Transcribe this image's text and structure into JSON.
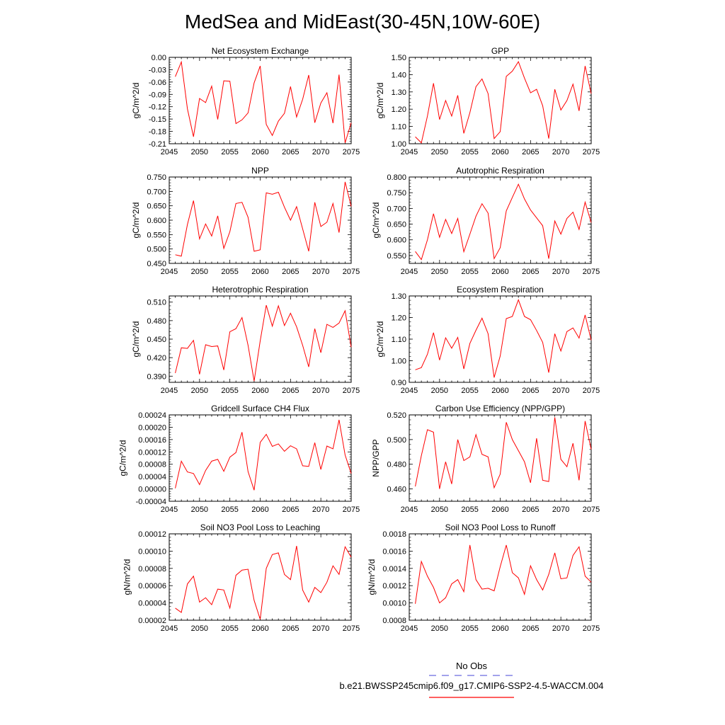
{
  "title": "MedSea and MidEast(30-45N,10W-60E)",
  "legend": {
    "entries": [
      {
        "label": "No Obs",
        "color": "#6a6adf",
        "dashed": true
      },
      {
        "label": "b.e21.BWSSP245cmip6.f09_g17.CMIP6-SSP2-4.5-WACCM.004",
        "color": "#ff0000",
        "dashed": false
      }
    ]
  },
  "chart_data": [
    {
      "type": "line",
      "title": "Net Ecosystem Exchange",
      "ylabel": "gC/m^2/d",
      "xlim": [
        2045,
        2075
      ],
      "ylim": [
        -0.21,
        0.0
      ],
      "xticks": [
        "2045",
        "2050",
        "2055",
        "2060",
        "2065",
        "2070",
        "2075"
      ],
      "yticks": [
        "0.00",
        "-0.03",
        "-0.06",
        "-0.09",
        "-0.12",
        "-0.15",
        "-0.18",
        "-0.21"
      ],
      "series": [
        {
          "color": "#ff0000",
          "x": [
            2046,
            2047,
            2048,
            2049,
            2050,
            2051,
            2052,
            2053,
            2054,
            2055,
            2056,
            2057,
            2058,
            2059,
            2060,
            2061,
            2062,
            2063,
            2064,
            2065,
            2066,
            2067,
            2068,
            2069,
            2070,
            2071,
            2072,
            2073,
            2074,
            2075
          ],
          "y": [
            -0.047,
            -0.011,
            -0.125,
            -0.193,
            -0.1,
            -0.11,
            -0.07,
            -0.151,
            -0.057,
            -0.058,
            -0.161,
            -0.152,
            -0.135,
            -0.062,
            -0.021,
            -0.163,
            -0.19,
            -0.155,
            -0.136,
            -0.071,
            -0.145,
            -0.102,
            -0.043,
            -0.159,
            -0.111,
            -0.086,
            -0.16,
            -0.042,
            -0.208,
            -0.159
          ]
        }
      ]
    },
    {
      "type": "line",
      "title": "GPP",
      "ylabel": "gC/m^2/d",
      "xlim": [
        2045,
        2075
      ],
      "ylim": [
        1.0,
        1.5
      ],
      "xticks": [
        "2045",
        "2050",
        "2055",
        "2060",
        "2065",
        "2070",
        "2075"
      ],
      "yticks": [
        "1.00",
        "1.10",
        "1.20",
        "1.30",
        "1.40",
        "1.50"
      ],
      "series": [
        {
          "color": "#ff0000",
          "x": [
            2046,
            2047,
            2048,
            2049,
            2050,
            2051,
            2052,
            2053,
            2054,
            2055,
            2056,
            2057,
            2058,
            2059,
            2060,
            2061,
            2062,
            2063,
            2064,
            2065,
            2066,
            2067,
            2068,
            2069,
            2070,
            2071,
            2072,
            2073,
            2074,
            2075
          ],
          "y": [
            1.04,
            1.005,
            1.16,
            1.35,
            1.14,
            1.25,
            1.16,
            1.28,
            1.06,
            1.18,
            1.33,
            1.375,
            1.29,
            1.03,
            1.07,
            1.39,
            1.42,
            1.475,
            1.38,
            1.295,
            1.315,
            1.22,
            1.03,
            1.315,
            1.195,
            1.25,
            1.345,
            1.19,
            1.45,
            1.29
          ]
        }
      ]
    },
    {
      "type": "line",
      "title": "NPP",
      "ylabel": "gC/m^2/d",
      "xlim": [
        2045,
        2075
      ],
      "ylim": [
        0.45,
        0.75
      ],
      "xticks": [
        "2045",
        "2050",
        "2055",
        "2060",
        "2065",
        "2070",
        "2075"
      ],
      "yticks": [
        "0.750",
        "0.700",
        "0.650",
        "0.600",
        "0.550",
        "0.500",
        "0.450"
      ],
      "series": [
        {
          "color": "#ff0000",
          "x": [
            2046,
            2047,
            2048,
            2049,
            2050,
            2051,
            2052,
            2053,
            2054,
            2055,
            2056,
            2057,
            2058,
            2059,
            2060,
            2061,
            2062,
            2063,
            2064,
            2065,
            2066,
            2067,
            2068,
            2069,
            2070,
            2071,
            2072,
            2073,
            2074,
            2075
          ],
          "y": [
            0.48,
            0.475,
            0.585,
            0.668,
            0.535,
            0.587,
            0.545,
            0.615,
            0.502,
            0.56,
            0.658,
            0.662,
            0.61,
            0.492,
            0.497,
            0.695,
            0.69,
            0.697,
            0.645,
            0.6,
            0.647,
            0.57,
            0.492,
            0.662,
            0.578,
            0.593,
            0.658,
            0.557,
            0.733,
            0.648
          ]
        }
      ]
    },
    {
      "type": "line",
      "title": "Autotrophic Respiration",
      "ylabel": "gC/m^2/d",
      "xlim": [
        2045,
        2075
      ],
      "ylim": [
        0.525,
        0.8
      ],
      "xticks": [
        "2045",
        "2050",
        "2055",
        "2060",
        "2065",
        "2070",
        "2075"
      ],
      "yticks": [
        "0.800",
        "0.750",
        "0.700",
        "0.650",
        "0.600",
        "0.550"
      ],
      "series": [
        {
          "color": "#ff0000",
          "x": [
            2046,
            2047,
            2048,
            2049,
            2050,
            2051,
            2052,
            2053,
            2054,
            2055,
            2056,
            2057,
            2058,
            2059,
            2060,
            2061,
            2062,
            2063,
            2064,
            2065,
            2066,
            2067,
            2068,
            2069,
            2070,
            2071,
            2072,
            2073,
            2074,
            2075
          ],
          "y": [
            0.563,
            0.537,
            0.6,
            0.683,
            0.608,
            0.665,
            0.62,
            0.668,
            0.562,
            0.618,
            0.675,
            0.715,
            0.685,
            0.54,
            0.575,
            0.692,
            0.735,
            0.777,
            0.73,
            0.695,
            0.67,
            0.645,
            0.54,
            0.66,
            0.618,
            0.668,
            0.688,
            0.633,
            0.72,
            0.655
          ]
        }
      ]
    },
    {
      "type": "line",
      "title": "Heterotrophic Respiration",
      "ylabel": "gC/m^2/d",
      "xlim": [
        2045,
        2075
      ],
      "ylim": [
        0.38,
        0.52
      ],
      "xticks": [
        "2045",
        "2050",
        "2055",
        "2060",
        "2065",
        "2070",
        "2075"
      ],
      "yticks": [
        "0.510",
        "0.480",
        "0.450",
        "0.420",
        "0.390"
      ],
      "series": [
        {
          "color": "#ff0000",
          "x": [
            2046,
            2047,
            2048,
            2049,
            2050,
            2051,
            2052,
            2053,
            2054,
            2055,
            2056,
            2057,
            2058,
            2059,
            2060,
            2061,
            2062,
            2063,
            2064,
            2065,
            2066,
            2067,
            2068,
            2069,
            2070,
            2071,
            2072,
            2073,
            2074,
            2075
          ],
          "y": [
            0.395,
            0.436,
            0.435,
            0.448,
            0.393,
            0.441,
            0.438,
            0.439,
            0.4,
            0.462,
            0.467,
            0.485,
            0.44,
            0.382,
            0.447,
            0.505,
            0.471,
            0.504,
            0.472,
            0.492,
            0.47,
            0.44,
            0.405,
            0.467,
            0.428,
            0.474,
            0.469,
            0.476,
            0.496,
            0.437
          ]
        }
      ]
    },
    {
      "type": "line",
      "title": "Ecosystem Respiration",
      "ylabel": "gC/m^2/d",
      "xlim": [
        2045,
        2075
      ],
      "ylim": [
        0.9,
        1.3
      ],
      "xticks": [
        "2045",
        "2050",
        "2055",
        "2060",
        "2065",
        "2070",
        "2075"
      ],
      "yticks": [
        "1.30",
        "1.20",
        "1.10",
        "1.00",
        "0.90"
      ],
      "series": [
        {
          "color": "#ff0000",
          "x": [
            2046,
            2047,
            2048,
            2049,
            2050,
            2051,
            2052,
            2053,
            2054,
            2055,
            2056,
            2057,
            2058,
            2059,
            2060,
            2061,
            2062,
            2063,
            2064,
            2065,
            2066,
            2067,
            2068,
            2069,
            2070,
            2071,
            2072,
            2073,
            2074,
            2075
          ],
          "y": [
            0.958,
            0.968,
            1.03,
            1.13,
            1.003,
            1.106,
            1.058,
            1.108,
            0.962,
            1.08,
            1.141,
            1.197,
            1.125,
            0.922,
            1.022,
            1.195,
            1.205,
            1.282,
            1.205,
            1.19,
            1.14,
            1.085,
            0.945,
            1.125,
            1.045,
            1.135,
            1.152,
            1.105,
            1.212,
            1.095
          ]
        }
      ]
    },
    {
      "type": "line",
      "title": "Gridcell Surface CH4 Flux",
      "ylabel": "gC/m^2/d",
      "xlim": [
        2045,
        2075
      ],
      "ylim": [
        -4e-05,
        0.00024
      ],
      "xticks": [
        "2045",
        "2050",
        "2055",
        "2060",
        "2065",
        "2070",
        "2075"
      ],
      "yticks": [
        "0.00024",
        "0.00020",
        "0.00016",
        "0.00012",
        "0.00008",
        "0.00004",
        "0.00000",
        "-0.00004"
      ],
      "series": [
        {
          "color": "#ff0000",
          "x": [
            2046,
            2047,
            2048,
            2049,
            2050,
            2051,
            2052,
            2053,
            2054,
            2055,
            2056,
            2057,
            2058,
            2059,
            2060,
            2061,
            2062,
            2063,
            2064,
            2065,
            2066,
            2067,
            2068,
            2069,
            2070,
            2071,
            2072,
            2073,
            2074,
            2075
          ],
          "y": [
            2e-06,
            9e-05,
            5.5e-05,
            5e-05,
            1.4e-05,
            6e-05,
            9e-05,
            9.6e-05,
            5.7e-05,
            0.000103,
            0.000118,
            0.000184,
            5.6e-05,
            -4e-06,
            0.000151,
            0.000177,
            0.000138,
            0.000146,
            0.000122,
            0.00014,
            0.00013,
            7.5e-05,
            7.3e-05,
            0.00015,
            6.3e-05,
            0.000139,
            0.00013,
            0.000224,
            0.00011,
            5e-05
          ]
        }
      ]
    },
    {
      "type": "line",
      "title": "Carbon Use Efficiency (NPP/GPP)",
      "ylabel": "NPP/GPP",
      "xlim": [
        2045,
        2075
      ],
      "ylim": [
        0.45,
        0.52
      ],
      "xticks": [
        "2045",
        "2050",
        "2055",
        "2060",
        "2065",
        "2070",
        "2075"
      ],
      "yticks": [
        "0.520",
        "0.500",
        "0.480",
        "0.460"
      ],
      "series": [
        {
          "color": "#ff0000",
          "x": [
            2046,
            2047,
            2048,
            2049,
            2050,
            2051,
            2052,
            2053,
            2054,
            2055,
            2056,
            2057,
            2058,
            2059,
            2060,
            2061,
            2062,
            2063,
            2064,
            2065,
            2066,
            2067,
            2068,
            2069,
            2070,
            2071,
            2072,
            2073,
            2074,
            2075
          ],
          "y": [
            0.462,
            0.487,
            0.508,
            0.506,
            0.46,
            0.482,
            0.464,
            0.5,
            0.483,
            0.486,
            0.504,
            0.488,
            0.486,
            0.461,
            0.472,
            0.514,
            0.5,
            0.491,
            0.482,
            0.465,
            0.501,
            0.467,
            0.466,
            0.518,
            0.484,
            0.478,
            0.497,
            0.467,
            0.515,
            0.492
          ]
        }
      ]
    },
    {
      "type": "line",
      "title": "Soil NO3 Pool Loss to Leaching",
      "ylabel": "gN/m^2/d",
      "xlim": [
        2045,
        2075
      ],
      "ylim": [
        2e-05,
        0.00012
      ],
      "xticks": [
        "2045",
        "2050",
        "2055",
        "2060",
        "2065",
        "2070",
        "2075"
      ],
      "yticks": [
        "0.00012",
        "0.00010",
        "0.00008",
        "0.00006",
        "0.00004",
        "0.00002"
      ],
      "series": [
        {
          "color": "#ff0000",
          "x": [
            2046,
            2047,
            2048,
            2049,
            2050,
            2051,
            2052,
            2053,
            2054,
            2055,
            2056,
            2057,
            2058,
            2059,
            2060,
            2061,
            2062,
            2063,
            2064,
            2065,
            2066,
            2067,
            2068,
            2069,
            2070,
            2071,
            2072,
            2073,
            2074,
            2075
          ],
          "y": [
            3.4e-05,
            2.9e-05,
            6.2e-05,
            7.1e-05,
            4.1e-05,
            4.6e-05,
            3.8e-05,
            5.6e-05,
            5.5e-05,
            3.4e-05,
            7.2e-05,
            7.8e-05,
            7.9e-05,
            4.3e-05,
            2.1e-05,
            8e-05,
            9.6e-05,
            9.8e-05,
            7.3e-05,
            6.7e-05,
            0.000106,
            5.5e-05,
            4.1e-05,
            5.8e-05,
            5.2e-05,
            6.4e-05,
            8.3e-05,
            7.3e-05,
            0.000105,
            9.3e-05
          ]
        }
      ]
    },
    {
      "type": "line",
      "title": "Soil NO3 Pool Loss to Runoff",
      "ylabel": "gN/m^2/d",
      "xlim": [
        2045,
        2075
      ],
      "ylim": [
        0.0008,
        0.0018
      ],
      "xticks": [
        "2045",
        "2050",
        "2055",
        "2060",
        "2065",
        "2070",
        "2075"
      ],
      "yticks": [
        "0.0018",
        "0.0016",
        "0.0014",
        "0.0012",
        "0.0010",
        "0.0008"
      ],
      "series": [
        {
          "color": "#ff0000",
          "x": [
            2046,
            2047,
            2048,
            2049,
            2050,
            2051,
            2052,
            2053,
            2054,
            2055,
            2056,
            2057,
            2058,
            2059,
            2060,
            2061,
            2062,
            2063,
            2064,
            2065,
            2066,
            2067,
            2068,
            2069,
            2070,
            2071,
            2072,
            2073,
            2074,
            2075
          ],
          "y": [
            0.00099,
            0.00148,
            0.00131,
            0.00118,
            0.001,
            0.00106,
            0.00122,
            0.00127,
            0.00113,
            0.00167,
            0.00127,
            0.00116,
            0.00117,
            0.00114,
            0.00142,
            0.00167,
            0.00135,
            0.00129,
            0.0011,
            0.00143,
            0.00127,
            0.00115,
            0.00133,
            0.00158,
            0.00128,
            0.00129,
            0.00155,
            0.00165,
            0.00131,
            0.00124
          ]
        }
      ]
    }
  ]
}
